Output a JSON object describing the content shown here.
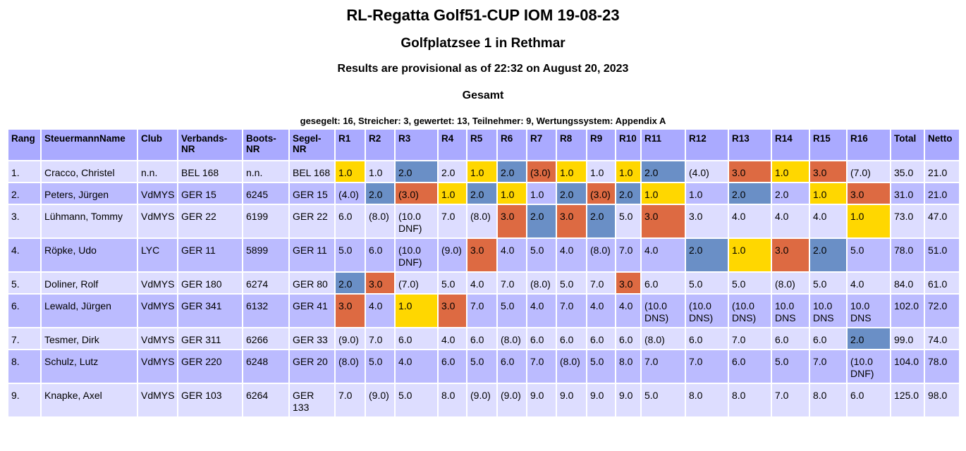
{
  "title": "RL-Regatta Golf51-CUP IOM 19-08-23",
  "venue": "Golfplatzsee 1 in Rethmar",
  "status": "Results are provisional as of 22:32 on August 20, 2023",
  "section": "Gesamt",
  "summary": "gesegelt: 16, Streicher: 3, gewertet: 13, Teilnehmer: 9, Wertungssystem: Appendix A",
  "colors": {
    "first": "#ffd700",
    "second": "#6a8fc6",
    "third": "#dd6a42",
    "header": "#aaaaff",
    "row_odd": "#ddddff",
    "row_even": "#bbbbff"
  },
  "headers": [
    "Rang",
    "SteuermannName",
    "Club",
    "Verbands-NR",
    "Boots-NR",
    "Segel-NR",
    "R1",
    "R2",
    "R3",
    "R4",
    "R5",
    "R6",
    "R7",
    "R8",
    "R9",
    "R10",
    "R11",
    "R12",
    "R13",
    "R14",
    "R15",
    "R16",
    "Total",
    "Netto"
  ],
  "rows": [
    {
      "rang": "1.",
      "name": "Cracco, Christel",
      "club": "n.n.",
      "verband": "BEL 168",
      "boot": "n.n.",
      "segel": "BEL 168",
      "r": [
        "1.0",
        "1.0",
        "2.0",
        "2.0",
        "1.0",
        "2.0",
        "(3.0)",
        "1.0",
        "1.0",
        "1.0",
        "2.0",
        "(4.0)",
        "3.0",
        "1.0",
        "3.0",
        "(7.0)"
      ],
      "total": "35.0",
      "netto": "21.0"
    },
    {
      "rang": "2.",
      "name": "Peters, Jürgen",
      "club": "VdMYS",
      "verband": "GER 15",
      "boot": "6245",
      "segel": "GER 15",
      "r": [
        "(4.0)",
        "2.0",
        "(3.0)",
        "1.0",
        "2.0",
        "1.0",
        "1.0",
        "2.0",
        "(3.0)",
        "2.0",
        "1.0",
        "1.0",
        "2.0",
        "2.0",
        "1.0",
        "3.0"
      ],
      "total": "31.0",
      "netto": "21.0"
    },
    {
      "rang": "3.",
      "name": "Lühmann, Tommy",
      "club": "VdMYS",
      "verband": "GER 22",
      "boot": "6199",
      "segel": "GER 22",
      "r": [
        "6.0",
        "(8.0)",
        "(10.0 DNF)",
        "7.0",
        "(8.0)",
        "3.0",
        "2.0",
        "3.0",
        "2.0",
        "5.0",
        "3.0",
        "3.0",
        "4.0",
        "4.0",
        "4.0",
        "1.0"
      ],
      "total": "73.0",
      "netto": "47.0"
    },
    {
      "rang": "4.",
      "name": "Röpke, Udo",
      "club": "LYC",
      "verband": "GER 11",
      "boot": "5899",
      "segel": "GER 11",
      "r": [
        "5.0",
        "6.0",
        "(10.0 DNF)",
        "(9.0)",
        "3.0",
        "4.0",
        "5.0",
        "4.0",
        "(8.0)",
        "7.0",
        "4.0",
        "2.0",
        "1.0",
        "3.0",
        "2.0",
        "5.0"
      ],
      "total": "78.0",
      "netto": "51.0"
    },
    {
      "rang": "5.",
      "name": "Doliner, Rolf",
      "club": "VdMYS",
      "verband": "GER 180",
      "boot": "6274",
      "segel": "GER 80",
      "r": [
        "2.0",
        "3.0",
        "(7.0)",
        "5.0",
        "4.0",
        "7.0",
        "(8.0)",
        "5.0",
        "7.0",
        "3.0",
        "6.0",
        "5.0",
        "5.0",
        "(8.0)",
        "5.0",
        "4.0"
      ],
      "total": "84.0",
      "netto": "61.0"
    },
    {
      "rang": "6.",
      "name": "Lewald, Jürgen",
      "club": "VdMYS",
      "verband": "GER 341",
      "boot": "6132",
      "segel": "GER 41",
      "r": [
        "3.0",
        "4.0",
        "1.0",
        "3.0",
        "7.0",
        "5.0",
        "4.0",
        "7.0",
        "4.0",
        "4.0",
        "(10.0 DNS)",
        "(10.0 DNS)",
        "(10.0 DNS)",
        "10.0 DNS",
        "10.0 DNS",
        "10.0 DNS"
      ],
      "total": "102.0",
      "netto": "72.0"
    },
    {
      "rang": "7.",
      "name": "Tesmer, Dirk",
      "club": "VdMYS",
      "verband": "GER 311",
      "boot": "6266",
      "segel": "GER 33",
      "r": [
        "(9.0)",
        "7.0",
        "6.0",
        "4.0",
        "6.0",
        "(8.0)",
        "6.0",
        "6.0",
        "6.0",
        "6.0",
        "(8.0)",
        "6.0",
        "7.0",
        "6.0",
        "6.0",
        "2.0"
      ],
      "total": "99.0",
      "netto": "74.0"
    },
    {
      "rang": "8.",
      "name": "Schulz, Lutz",
      "club": "VdMYS",
      "verband": "GER 220",
      "boot": "6248",
      "segel": "GER 20",
      "r": [
        "(8.0)",
        "5.0",
        "4.0",
        "6.0",
        "5.0",
        "6.0",
        "7.0",
        "(8.0)",
        "5.0",
        "8.0",
        "7.0",
        "7.0",
        "6.0",
        "5.0",
        "7.0",
        "(10.0 DNF)"
      ],
      "total": "104.0",
      "netto": "78.0"
    },
    {
      "rang": "9.",
      "name": "Knapke, Axel",
      "club": "VdMYS",
      "verband": "GER 103",
      "boot": "6264",
      "segel": "GER 133",
      "r": [
        "7.0",
        "(9.0)",
        "5.0",
        "8.0",
        "(9.0)",
        "(9.0)",
        "9.0",
        "9.0",
        "9.0",
        "9.0",
        "5.0",
        "8.0",
        "8.0",
        "7.0",
        "8.0",
        "6.0"
      ],
      "total": "125.0",
      "netto": "98.0"
    }
  ],
  "highlights": [
    "y.b.yboy.yb.oyo.",
    ".boyby.boby.b.yo",
    ".....obob.o....y",
    "....o......byob.",
    "bo.......o......",
    "o.yo............",
    "...............b",
    "................",
    "................"
  ]
}
